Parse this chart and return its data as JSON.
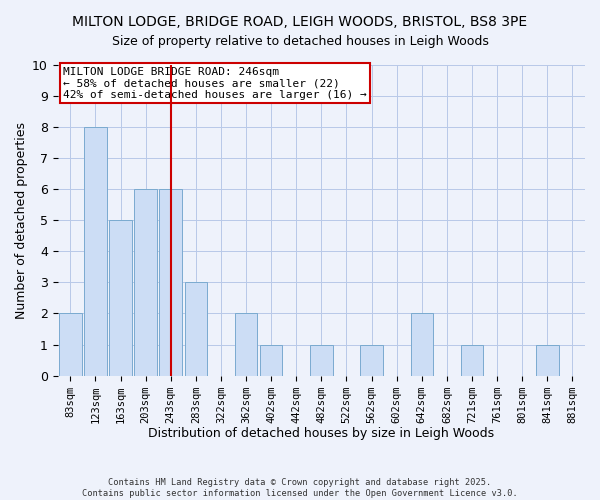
{
  "title1": "MILTON LODGE, BRIDGE ROAD, LEIGH WOODS, BRISTOL, BS8 3PE",
  "title2": "Size of property relative to detached houses in Leigh Woods",
  "xlabel": "Distribution of detached houses by size in Leigh Woods",
  "ylabel": "Number of detached properties",
  "bar_labels": [
    "83sqm",
    "123sqm",
    "163sqm",
    "203sqm",
    "243sqm",
    "283sqm",
    "322sqm",
    "362sqm",
    "402sqm",
    "442sqm",
    "482sqm",
    "522sqm",
    "562sqm",
    "602sqm",
    "642sqm",
    "682sqm",
    "721sqm",
    "761sqm",
    "801sqm",
    "841sqm",
    "881sqm"
  ],
  "bar_values": [
    2,
    8,
    5,
    6,
    6,
    3,
    0,
    2,
    1,
    0,
    1,
    0,
    1,
    0,
    2,
    0,
    1,
    0,
    0,
    1,
    0
  ],
  "bar_color": "#ccddf5",
  "bar_edge_color": "#7aaad0",
  "vline_x_index": 4,
  "vline_color": "#cc0000",
  "ylim": [
    0,
    10
  ],
  "yticks": [
    0,
    1,
    2,
    3,
    4,
    5,
    6,
    7,
    8,
    9,
    10
  ],
  "annotation_title": "MILTON LODGE BRIDGE ROAD: 246sqm",
  "annotation_line1": "← 58% of detached houses are smaller (22)",
  "annotation_line2": "42% of semi-detached houses are larger (16) →",
  "annotation_box_color": "#ffffff",
  "annotation_box_edge": "#cc0000",
  "footer1": "Contains HM Land Registry data © Crown copyright and database right 2025.",
  "footer2": "Contains public sector information licensed under the Open Government Licence v3.0.",
  "background_color": "#eef2fb",
  "grid_color": "#b8c8e8"
}
